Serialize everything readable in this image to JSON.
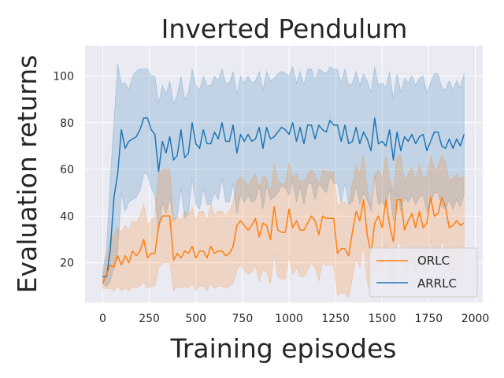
{
  "chart_data": {
    "type": "line",
    "title": "Inverted Pendulum",
    "xlabel": "Training episodes",
    "ylabel": "Evaluation returns",
    "xlim": [
      -95,
      2040
    ],
    "ylim": [
      3,
      113
    ],
    "xticks": [
      0,
      250,
      500,
      750,
      1000,
      1250,
      1500,
      1750,
      2000
    ],
    "yticks": [
      20,
      40,
      60,
      80,
      100
    ],
    "grid": true,
    "legend_position": "lower-right",
    "x_start": 0,
    "x_step": 20,
    "series": [
      {
        "name": "ORLC",
        "color": "#ff7f0e",
        "mean": [
          11,
          15,
          19,
          18,
          23,
          19,
          23,
          20,
          25,
          23,
          25,
          30,
          22,
          24,
          24,
          36,
          40,
          40,
          40,
          21,
          24,
          22,
          25,
          24,
          27,
          22,
          25,
          25,
          22,
          27,
          24,
          25,
          25,
          23,
          24,
          27,
          36,
          38,
          36,
          34,
          36,
          39,
          31,
          37,
          36,
          30,
          44,
          34,
          33,
          33,
          43,
          35,
          38,
          34,
          34,
          37,
          40,
          38,
          32,
          40,
          39,
          39,
          39,
          24,
          26,
          26,
          23,
          33,
          42,
          38,
          47,
          32,
          24,
          37,
          40,
          35,
          47,
          36,
          29,
          47,
          47,
          34,
          38,
          41,
          35,
          42,
          35,
          37,
          48,
          40,
          41,
          48,
          44,
          35,
          36,
          38,
          36,
          37
        ],
        "upper": [
          14,
          22,
          30,
          32,
          35,
          33,
          36,
          34,
          38,
          37,
          40,
          45,
          36,
          38,
          40,
          58,
          60,
          60,
          60,
          38,
          40,
          38,
          42,
          40,
          44,
          38,
          42,
          42,
          38,
          45,
          40,
          42,
          42,
          40,
          42,
          46,
          55,
          57,
          55,
          53,
          56,
          58,
          52,
          57,
          56,
          50,
          62,
          55,
          54,
          54,
          63,
          56,
          58,
          55,
          55,
          58,
          60,
          58,
          53,
          60,
          59,
          59,
          59,
          44,
          46,
          46,
          44,
          54,
          62,
          58,
          66,
          52,
          44,
          57,
          60,
          56,
          66,
          56,
          50,
          66,
          66,
          55,
          58,
          61,
          55,
          62,
          56,
          57,
          66,
          60,
          61,
          66,
          63,
          55,
          56,
          58,
          56,
          57
        ],
        "lower": [
          9,
          9,
          9,
          8,
          10,
          8,
          9,
          8,
          10,
          9,
          10,
          12,
          9,
          10,
          10,
          18,
          20,
          20,
          20,
          8,
          10,
          9,
          10,
          9,
          11,
          8,
          10,
          10,
          8,
          11,
          9,
          10,
          10,
          9,
          10,
          11,
          17,
          19,
          17,
          15,
          16,
          19,
          12,
          17,
          16,
          11,
          24,
          14,
          13,
          13,
          23,
          15,
          18,
          14,
          14,
          17,
          20,
          18,
          12,
          20,
          19,
          19,
          19,
          6,
          7,
          7,
          5,
          13,
          22,
          18,
          28,
          12,
          6,
          17,
          20,
          15,
          28,
          16,
          9,
          28,
          28,
          14,
          18,
          21,
          15,
          22,
          15,
          17,
          30,
          20,
          21,
          30,
          25,
          15,
          16,
          18,
          16,
          17
        ]
      },
      {
        "name": "ARRLC",
        "color": "#1f77b4",
        "mean": [
          14,
          14,
          25,
          48,
          58,
          77,
          69,
          72,
          73,
          74,
          77,
          82,
          82,
          77,
          75,
          59,
          72,
          67,
          74,
          64,
          66,
          77,
          65,
          67,
          80,
          71,
          69,
          77,
          71,
          71,
          76,
          73,
          80,
          72,
          72,
          79,
          67,
          75,
          72,
          75,
          72,
          73,
          78,
          69,
          78,
          73,
          74,
          76,
          78,
          77,
          75,
          80,
          72,
          78,
          71,
          79,
          79,
          73,
          79,
          77,
          76,
          81,
          79,
          79,
          72,
          79,
          71,
          72,
          78,
          71,
          76,
          73,
          68,
          82,
          71,
          72,
          70,
          77,
          64,
          76,
          68,
          74,
          72,
          75,
          71,
          74,
          75,
          68,
          72,
          76,
          76,
          70,
          69,
          73,
          69,
          73,
          70,
          75
        ],
        "upper": [
          17,
          25,
          55,
          80,
          105,
          97,
          97,
          94,
          100,
          102,
          103,
          103,
          103,
          100,
          100,
          88,
          96,
          92,
          98,
          88,
          92,
          100,
          90,
          93,
          103,
          96,
          94,
          100,
          96,
          96,
          100,
          98,
          103,
          97,
          97,
          102,
          92,
          100,
          97,
          100,
          97,
          98,
          102,
          94,
          102,
          98,
          99,
          101,
          102,
          101,
          100,
          104,
          97,
          102,
          96,
          103,
          103,
          98,
          103,
          102,
          101,
          104,
          103,
          103,
          97,
          103,
          96,
          97,
          102,
          96,
          101,
          98,
          93,
          104,
          96,
          97,
          95,
          102,
          90,
          101,
          93,
          99,
          97,
          100,
          96,
          99,
          100,
          93,
          97,
          101,
          101,
          95,
          94,
          98,
          94,
          98,
          95,
          101
        ],
        "lower": [
          11,
          10,
          12,
          18,
          25,
          50,
          42,
          46,
          47,
          48,
          51,
          58,
          58,
          52,
          49,
          33,
          46,
          41,
          48,
          38,
          40,
          52,
          39,
          41,
          56,
          45,
          43,
          52,
          45,
          45,
          50,
          47,
          56,
          46,
          46,
          54,
          41,
          49,
          46,
          49,
          46,
          47,
          53,
          43,
          53,
          47,
          48,
          50,
          53,
          52,
          49,
          55,
          46,
          53,
          45,
          54,
          54,
          47,
          54,
          52,
          50,
          57,
          54,
          54,
          46,
          54,
          45,
          46,
          53,
          45,
          50,
          47,
          42,
          57,
          45,
          46,
          44,
          52,
          38,
          50,
          42,
          48,
          46,
          49,
          45,
          48,
          49,
          42,
          46,
          50,
          50,
          44,
          43,
          47,
          43,
          47,
          44,
          49
        ]
      }
    ]
  }
}
